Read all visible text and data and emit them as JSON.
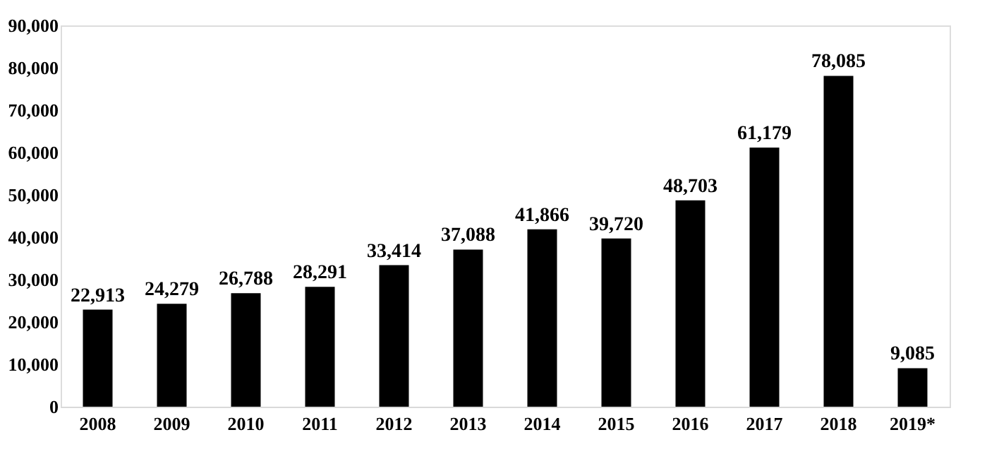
{
  "chart_data": {
    "type": "bar",
    "categories": [
      "2008",
      "2009",
      "2010",
      "2011",
      "2012",
      "2013",
      "2014",
      "2015",
      "2016",
      "2017",
      "2018",
      "2019*"
    ],
    "values": [
      22913,
      24279,
      26788,
      28291,
      33414,
      37088,
      41866,
      39720,
      48703,
      61179,
      78085,
      9085
    ],
    "color": "#000000",
    "ylim": [
      0,
      90000
    ],
    "yticks": [
      {
        "value": 0,
        "label": "0"
      },
      {
        "value": 10000,
        "label": "10,000"
      },
      {
        "value": 20000,
        "label": "20,000"
      },
      {
        "value": 30000,
        "label": "30,000"
      },
      {
        "value": 40000,
        "label": "40,000"
      },
      {
        "value": 50000,
        "label": "50,000"
      },
      {
        "value": 60000,
        "label": "60,000"
      },
      {
        "value": 70000,
        "label": "70,000"
      },
      {
        "value": 80000,
        "label": "80,000"
      },
      {
        "value": 90000,
        "label": "90,000"
      }
    ],
    "grid": false,
    "value_labels": [
      "22,913",
      "24,279",
      "26,788",
      "28,291",
      "33,414",
      "37,088",
      "41,866",
      "39,720",
      "48,703",
      "61,179",
      "78,085",
      "9,085"
    ]
  }
}
